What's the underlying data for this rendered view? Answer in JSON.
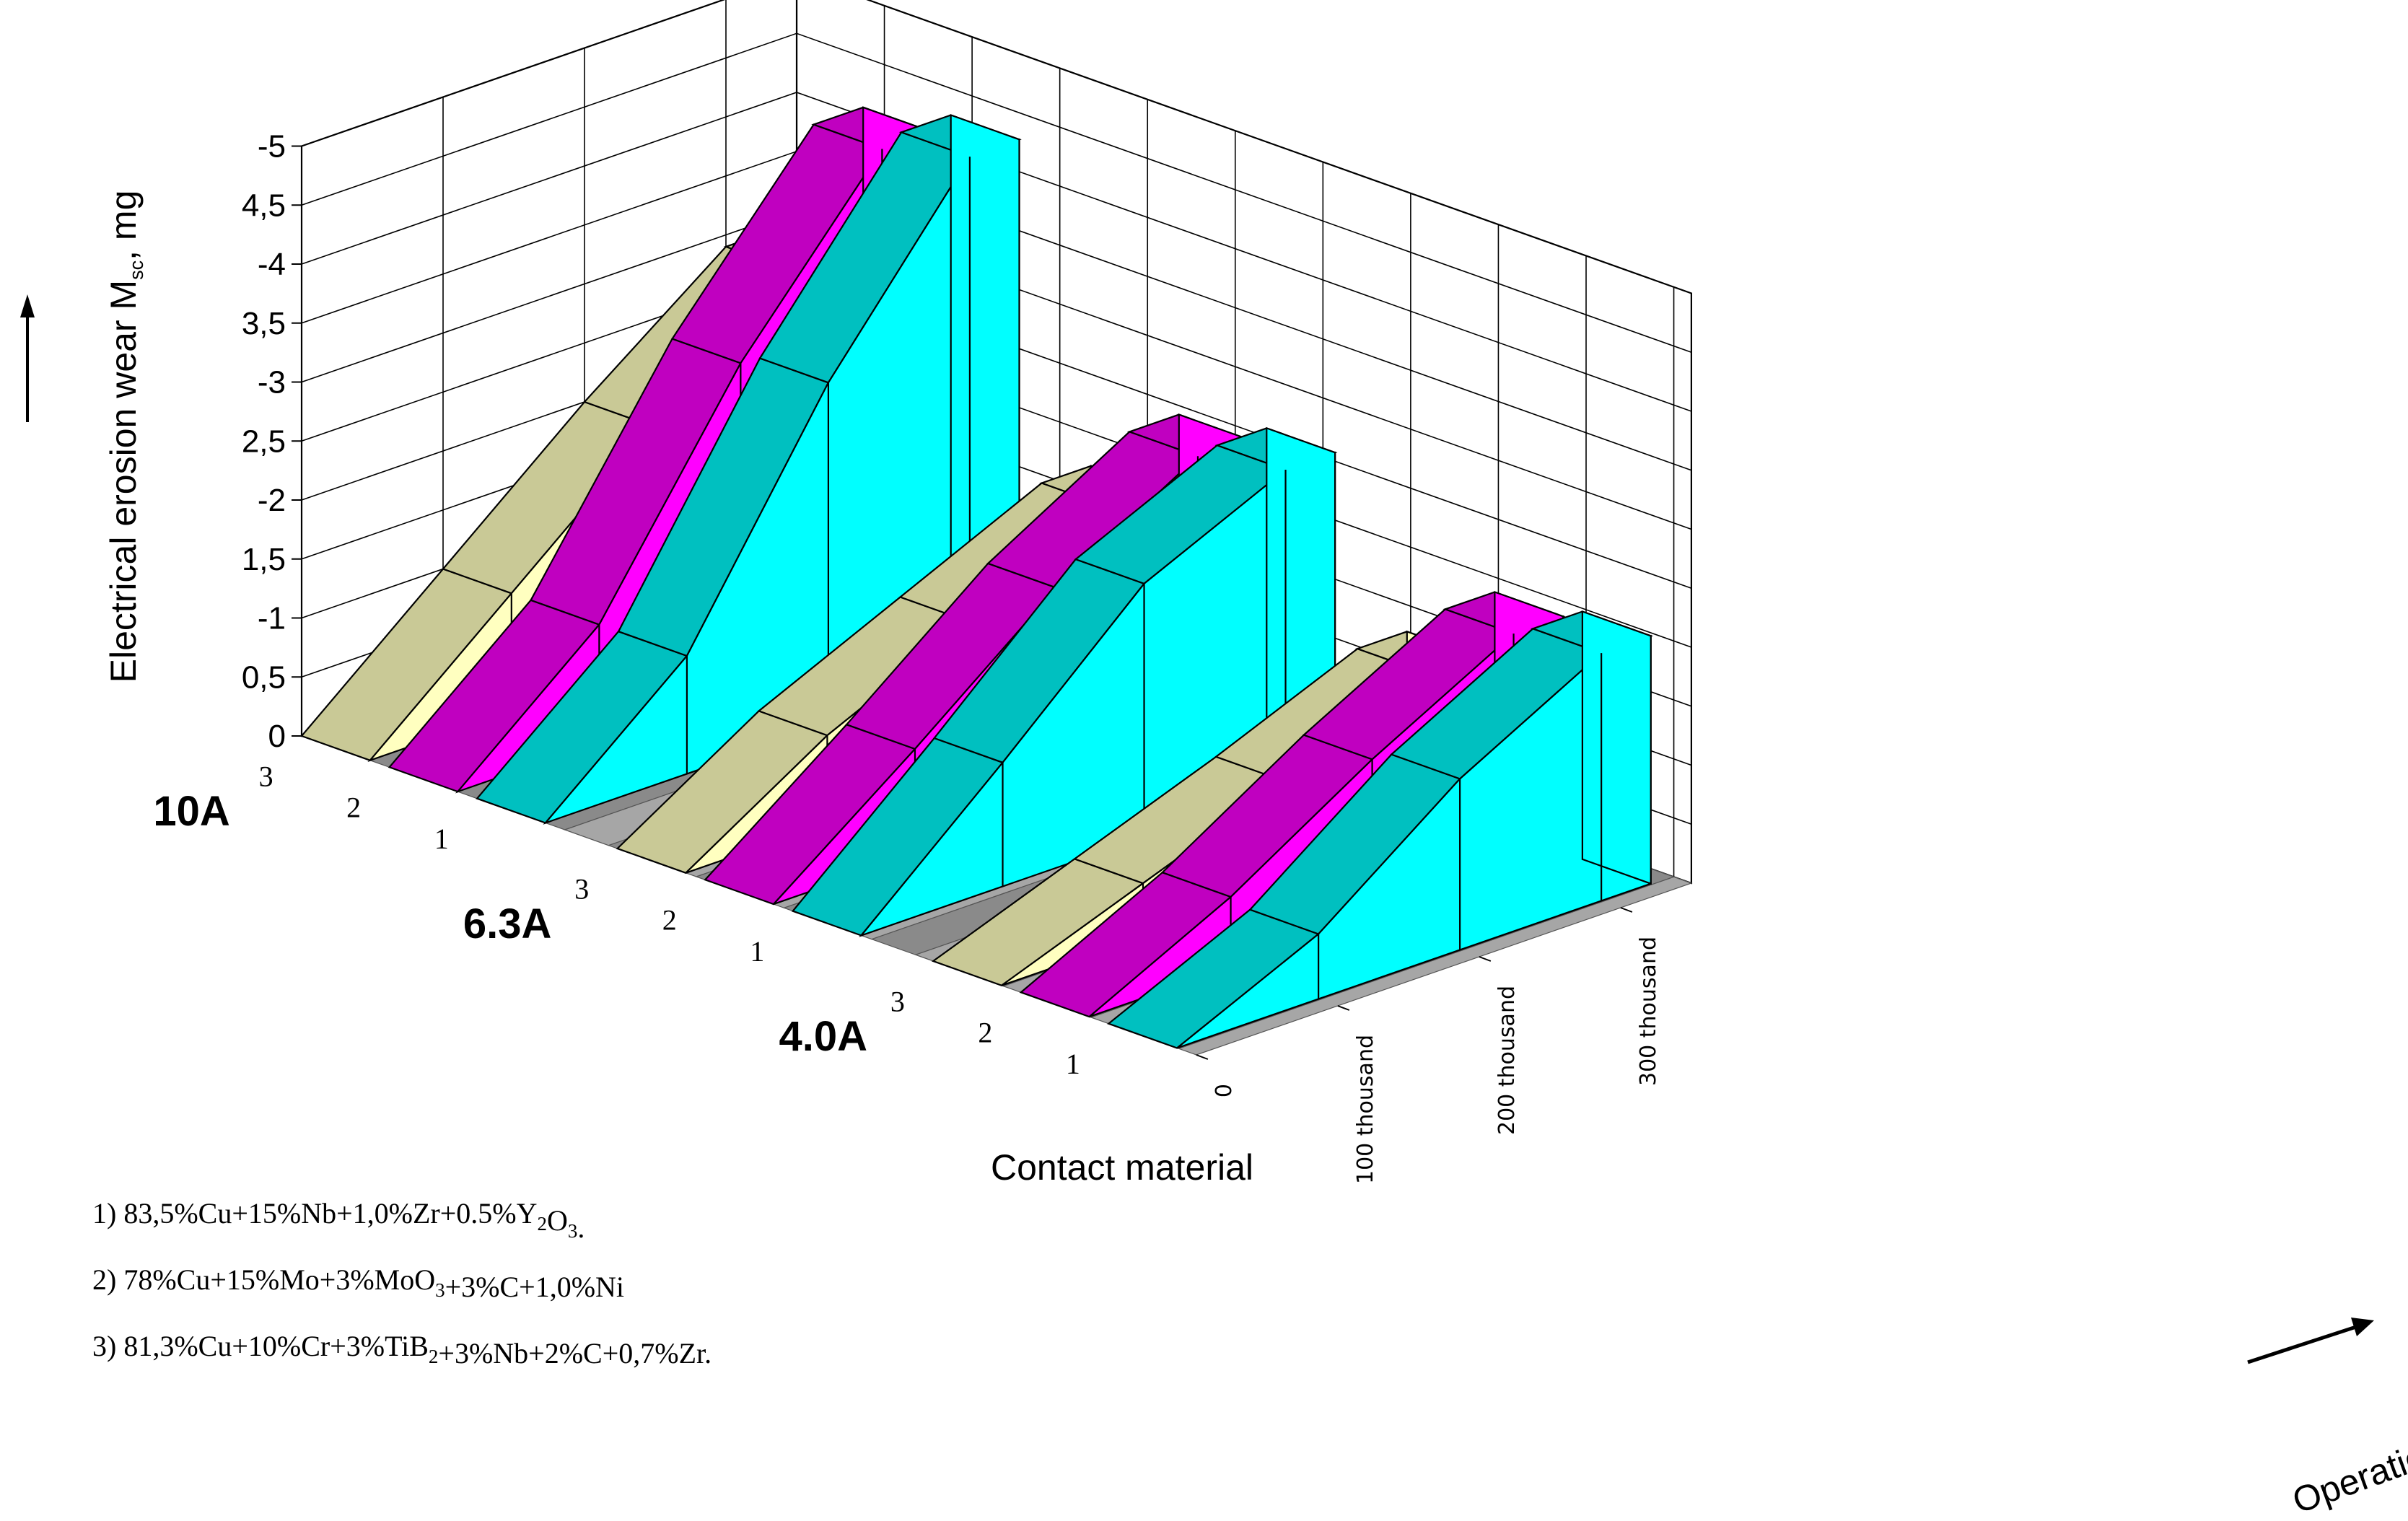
{
  "chart_data": {
    "type": "bar3d",
    "ylabel": "Electrical erosion wear",
    "ylabel_symbol": "M",
    "ylabel_sub": "sc",
    "ylabel_unit": ", mg",
    "xlabel": "Contact material",
    "zlabel": "Operation",
    "ylim": [
      0,
      5
    ],
    "y_ticks": [
      {
        "v": 0,
        "label": "0"
      },
      {
        "v": 0.5,
        "label": "0,5"
      },
      {
        "v": 1,
        "label": "-1"
      },
      {
        "v": 1.5,
        "label": "1,5"
      },
      {
        "v": 2,
        "label": "-2"
      },
      {
        "v": 2.5,
        "label": "2,5"
      },
      {
        "v": 3,
        "label": "-3"
      },
      {
        "v": 3.5,
        "label": "3,5"
      },
      {
        "v": 4,
        "label": "-4"
      },
      {
        "v": 4.5,
        "label": "4,5"
      },
      {
        "v": 5,
        "label": "-5"
      }
    ],
    "operation_ticks": [
      "0",
      "100 thousand",
      "200 thousand",
      "300 thousand"
    ],
    "groups": [
      {
        "label": "10A",
        "series": [
          {
            "material": "3",
            "values": [
              0,
              1.0,
              2.0,
              2.9
            ]
          },
          {
            "material": "2",
            "values": [
              0,
              1.0,
              2.8,
              4.2
            ]
          },
          {
            "material": "1",
            "values": [
              0,
              1.0,
              2.9,
              4.4
            ]
          }
        ]
      },
      {
        "label": "6.3A",
        "series": [
          {
            "material": "3",
            "values": [
              0,
              0.75,
              1.3,
              1.85
            ]
          },
          {
            "material": "2",
            "values": [
              0,
              0.9,
              1.85,
              2.55
            ]
          },
          {
            "material": "1",
            "values": [
              0,
              1.05,
              2.15,
              2.7
            ]
          }
        ]
      },
      {
        "label": "4.0A",
        "series": [
          {
            "material": "3",
            "values": [
              0,
              0.45,
              0.9,
              1.4
            ]
          },
          {
            "material": "2",
            "values": [
              0,
              0.6,
              1.35,
              2.0
            ]
          },
          {
            "material": "1",
            "values": [
              0,
              0.55,
              1.45,
              2.1
            ]
          }
        ]
      }
    ],
    "colors": {
      "3": {
        "side": "#ffffc0",
        "top": "#c9c996"
      },
      "2": {
        "side": "#ff00ff",
        "top": "#c000c0"
      },
      "1": {
        "side": "#00ffff",
        "top": "#00c0c0"
      }
    },
    "legend": [
      {
        "num": "1)",
        "parts": [
          [
            "t",
            "83,5%Cu+15%Nb+1,0%Zr+0.5%Y"
          ],
          [
            "s",
            "2"
          ],
          [
            "t",
            "O"
          ],
          [
            "s",
            "3"
          ],
          [
            "t",
            "."
          ]
        ]
      },
      {
        "num": "2)",
        "parts": [
          [
            "t",
            "78%Cu+15%Mo+3%MoO"
          ],
          [
            "s",
            "3"
          ],
          [
            "t",
            "+3%C+1,0%Ni"
          ]
        ]
      },
      {
        "num": "3)",
        "parts": [
          [
            "t",
            "81,3%Cu+10%Cr+3%TiB"
          ],
          [
            "s",
            "2"
          ],
          [
            "t",
            "+3%Nb+2%C+0,7%Zr."
          ]
        ]
      }
    ]
  }
}
